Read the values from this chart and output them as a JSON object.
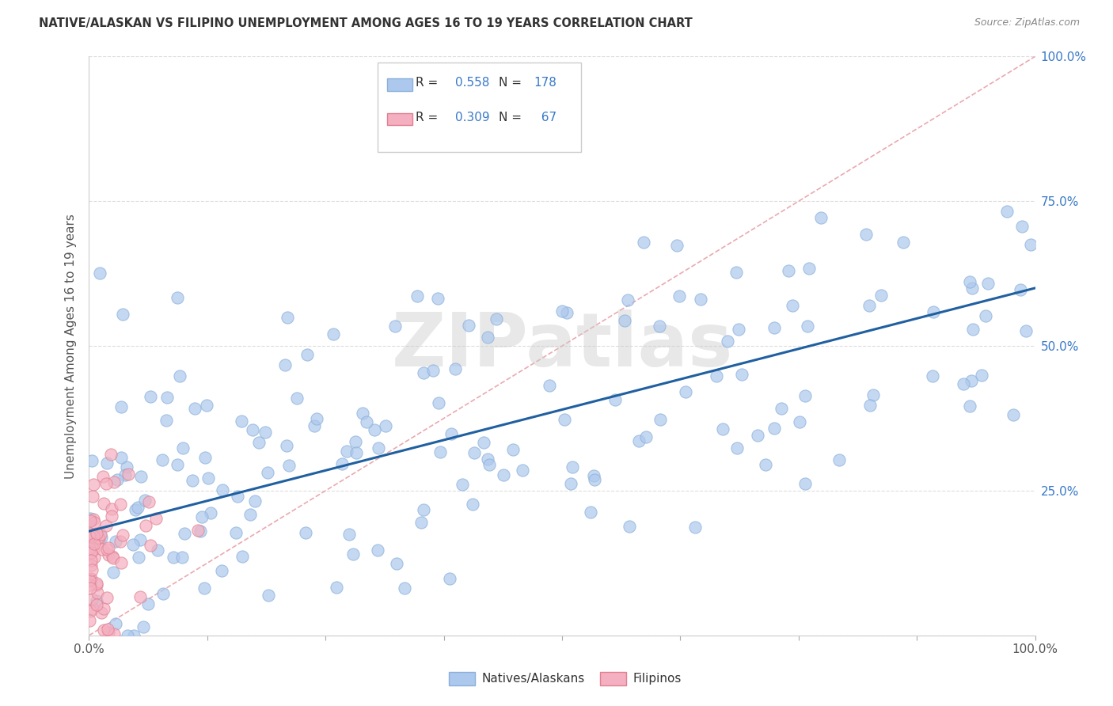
{
  "title": "NATIVE/ALASKAN VS FILIPINO UNEMPLOYMENT AMONG AGES 16 TO 19 YEARS CORRELATION CHART",
  "source": "Source: ZipAtlas.com",
  "ylabel": "Unemployment Among Ages 16 to 19 years",
  "legend_r_native": "0.558",
  "legend_n_native": "178",
  "legend_r_filipino": "0.309",
  "legend_n_filipino": "67",
  "native_color": "#adc8ed",
  "native_edge": "#8ab0db",
  "filipino_color": "#f4afc0",
  "filipino_edge": "#e08090",
  "trendline_color": "#2060a0",
  "diagonal_color": "#e8a0a8",
  "text_blue": "#3878c8",
  "watermark": "ZIPatlas",
  "seed": 12345
}
